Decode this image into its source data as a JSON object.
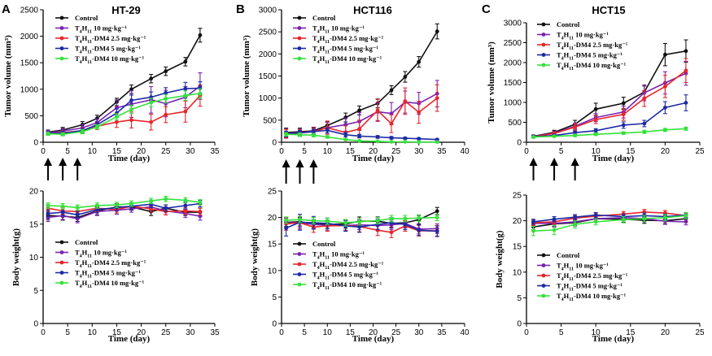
{
  "legend_labels": [
    "Control",
    "T4H11 10 mg·kg⁻¹",
    "T4H11-DM4 2.5 mg·kg⁻¹",
    "T4H11-DM4 5 mg·kg⁻¹",
    "T4H11-DM4 10 mg·kg⁻¹"
  ],
  "series_colors": [
    "#111111",
    "#7b22b4",
    "#e8262b",
    "#1c2aa6",
    "#34e23a"
  ],
  "chart_data": [
    {
      "type": "line",
      "panel": "A",
      "title": "HT-29",
      "xlabel": "Time (day)",
      "ylabel": "Tumor volume (mm³)",
      "xlim": [
        0,
        35
      ],
      "ylim": [
        0,
        2500
      ],
      "xticks": [
        0,
        5,
        10,
        15,
        20,
        25,
        30,
        35
      ],
      "yticks": [
        0,
        500,
        1000,
        1500,
        2000,
        2500
      ],
      "dosing_days": [
        1,
        4,
        7
      ],
      "legend": "top-left",
      "x": [
        1,
        4,
        8,
        11,
        15,
        18,
        22,
        25,
        29,
        32
      ],
      "series": [
        {
          "name": "Control",
          "values": [
            190,
            230,
            330,
            450,
            760,
            1000,
            1200,
            1340,
            1520,
            2020
          ],
          "err": [
            40,
            50,
            60,
            60,
            70,
            80,
            80,
            80,
            80,
            130
          ]
        },
        {
          "name": "T4H11 10 mg·kg⁻¹",
          "values": [
            180,
            210,
            270,
            370,
            650,
            720,
            800,
            730,
            850,
            1060
          ],
          "err": [
            40,
            50,
            60,
            70,
            150,
            250,
            250,
            250,
            200,
            250
          ]
        },
        {
          "name": "T4H11-DM4 2.5 mg·kg⁻¹",
          "values": [
            170,
            180,
            220,
            300,
            380,
            420,
            380,
            520,
            580,
            880
          ],
          "err": [
            30,
            40,
            50,
            60,
            100,
            150,
            150,
            150,
            200,
            200
          ]
        },
        {
          "name": "T4H11-DM4 5 mg·kg⁻¹",
          "values": [
            170,
            170,
            220,
            330,
            550,
            790,
            850,
            930,
            1010,
            1020
          ],
          "err": [
            30,
            40,
            40,
            50,
            80,
            100,
            100,
            100,
            120,
            120
          ]
        },
        {
          "name": "T4H11-DM4 10 mg·kg⁻¹",
          "values": [
            160,
            150,
            200,
            290,
            480,
            620,
            750,
            820,
            880,
            920
          ],
          "err": [
            30,
            30,
            40,
            40,
            60,
            80,
            80,
            80,
            90,
            90
          ]
        }
      ]
    },
    {
      "type": "line",
      "panel": "B",
      "title": "HCT116",
      "xlabel": "Time (day)",
      "ylabel": "Tumor volume (mm³)",
      "xlim": [
        0,
        40
      ],
      "ylim": [
        0,
        3000
      ],
      "xticks": [
        0,
        5,
        10,
        15,
        20,
        25,
        30,
        35,
        40
      ],
      "yticks": [
        0,
        500,
        1000,
        1500,
        2000,
        2500,
        3000
      ],
      "dosing_days": [
        1,
        4,
        7
      ],
      "legend": "top-left",
      "x": [
        1,
        4,
        7,
        10,
        14,
        17,
        21,
        24,
        27,
        30,
        34
      ],
      "series": [
        {
          "name": "Control",
          "values": [
            220,
            240,
            260,
            380,
            560,
            720,
            880,
            1180,
            1480,
            1820,
            2510
          ],
          "err": [
            100,
            80,
            80,
            80,
            100,
            100,
            100,
            100,
            120,
            120,
            170
          ]
        },
        {
          "name": "T4H11 10 mg·kg⁻¹",
          "values": [
            200,
            220,
            250,
            330,
            400,
            470,
            690,
            650,
            910,
            880,
            1100
          ],
          "err": [
            100,
            80,
            80,
            120,
            150,
            200,
            200,
            250,
            250,
            250,
            300
          ]
        },
        {
          "name": "T4H11-DM4 2.5 mg·kg⁻¹",
          "values": [
            190,
            210,
            240,
            330,
            220,
            300,
            720,
            420,
            930,
            680,
            1000
          ],
          "err": [
            100,
            80,
            80,
            150,
            150,
            200,
            250,
            200,
            300,
            250,
            300
          ]
        },
        {
          "name": "T4H11-DM4 5 mg·kg⁻¹",
          "values": [
            190,
            210,
            240,
            270,
            170,
            140,
            120,
            100,
            90,
            80,
            60
          ],
          "err": [
            60,
            60,
            60,
            60,
            50,
            40,
            30,
            30,
            20,
            20,
            20
          ]
        },
        {
          "name": "T4H11-DM4 10 mg·kg⁻¹",
          "values": [
            180,
            170,
            160,
            120,
            60,
            30,
            20,
            10,
            10,
            5,
            5
          ],
          "err": [
            40,
            40,
            40,
            30,
            20,
            10,
            5,
            5,
            5,
            5,
            5
          ]
        }
      ]
    },
    {
      "type": "line",
      "panel": "C",
      "title": "HCT15",
      "xlabel": "Time (day)",
      "ylabel": "Tumor volume (mm³)",
      "xlim": [
        0,
        25
      ],
      "ylim": [
        0,
        3000
      ],
      "xticks": [
        0,
        5,
        10,
        15,
        20,
        25
      ],
      "yticks": [
        0,
        500,
        1000,
        1500,
        2000,
        2500,
        3000
      ],
      "dosing_days": [
        1,
        4,
        7
      ],
      "legend": "top-left",
      "x": [
        1,
        4,
        7,
        10,
        14,
        17,
        20,
        23
      ],
      "series": [
        {
          "name": "Control",
          "values": [
            150,
            250,
            450,
            830,
            980,
            1260,
            2200,
            2290
          ],
          "err": [
            30,
            50,
            100,
            150,
            150,
            150,
            280,
            280
          ]
        },
        {
          "name": "T4H11 10 mg·kg⁻¹",
          "values": [
            140,
            230,
            400,
            620,
            760,
            1240,
            1490,
            1730
          ],
          "err": [
            30,
            40,
            80,
            100,
            150,
            200,
            280,
            300
          ]
        },
        {
          "name": "T4H11-DM4 2.5 mg·kg⁻¹",
          "values": [
            140,
            220,
            380,
            570,
            700,
            1100,
            1400,
            1800
          ],
          "err": [
            30,
            40,
            80,
            100,
            150,
            200,
            280,
            300
          ]
        },
        {
          "name": "T4H11-DM4 5 mg·kg⁻¹",
          "values": [
            140,
            170,
            240,
            290,
            430,
            470,
            870,
            990
          ],
          "err": [
            30,
            30,
            40,
            50,
            80,
            80,
            150,
            200
          ]
        },
        {
          "name": "T4H11-DM4 10 mg·kg⁻¹",
          "values": [
            130,
            150,
            170,
            200,
            230,
            260,
            310,
            340
          ],
          "err": [
            20,
            20,
            30,
            30,
            30,
            40,
            40,
            40
          ]
        }
      ]
    },
    {
      "type": "line",
      "panel": "A-weight",
      "xlabel": "Time (day)",
      "ylabel": "Body weight(g)",
      "xlim": [
        0,
        35
      ],
      "ylim": [
        0,
        20
      ],
      "xticks": [
        0,
        5,
        10,
        15,
        20,
        25,
        30,
        35
      ],
      "yticks": [
        0,
        5,
        10,
        15,
        20
      ],
      "legend": "bottom-left",
      "x": [
        1,
        4,
        7,
        11,
        15,
        18,
        22,
        25,
        29,
        32
      ],
      "series": [
        {
          "name": "Control",
          "values": [
            16.3,
            16.2,
            16.0,
            17.0,
            17.6,
            17.6,
            16.9,
            17.4,
            16.8,
            16.8
          ],
          "err": [
            0.6,
            0.6,
            0.6,
            0.6,
            0.5,
            0.5,
            0.6,
            0.5,
            0.5,
            0.6
          ]
        },
        {
          "name": "T4H11 10 mg·kg⁻¹",
          "values": [
            16.0,
            16.3,
            15.8,
            16.9,
            17.1,
            17.3,
            17.6,
            17.0,
            16.6,
            16.2
          ],
          "err": [
            0.6,
            0.6,
            0.6,
            0.6,
            0.6,
            0.5,
            0.5,
            0.6,
            0.6,
            0.6
          ]
        },
        {
          "name": "T4H11-DM4 2.5 mg·kg⁻¹",
          "values": [
            17.4,
            17.0,
            16.9,
            17.4,
            17.2,
            17.7,
            17.3,
            16.9,
            17.0,
            16.9
          ],
          "err": [
            0.5,
            0.5,
            0.5,
            0.5,
            0.5,
            0.5,
            0.5,
            0.5,
            0.5,
            0.5
          ]
        },
        {
          "name": "T4H11-DM4 5 mg·kg⁻¹",
          "values": [
            16.6,
            16.8,
            16.4,
            17.2,
            17.5,
            17.7,
            18.0,
            17.4,
            17.8,
            18.1
          ],
          "err": [
            0.5,
            0.5,
            0.5,
            0.5,
            0.5,
            0.5,
            0.5,
            0.5,
            0.5,
            0.5
          ]
        },
        {
          "name": "T4H11-DM4 10 mg·kg⁻¹",
          "values": [
            17.8,
            17.7,
            17.5,
            17.8,
            17.9,
            18.1,
            18.5,
            18.8,
            18.6,
            18.3
          ],
          "err": [
            0.4,
            0.4,
            0.4,
            0.4,
            0.4,
            0.4,
            0.4,
            0.4,
            0.4,
            0.4
          ]
        }
      ]
    },
    {
      "type": "line",
      "panel": "B-weight",
      "xlabel": "Time (day)",
      "ylabel": "Body weight(g)",
      "xlim": [
        0,
        40
      ],
      "ylim": [
        0,
        25
      ],
      "xticks": [
        0,
        5,
        10,
        15,
        20,
        25,
        30,
        35,
        40
      ],
      "yticks": [
        0,
        5,
        10,
        15,
        20,
        25
      ],
      "legend": "bottom-left",
      "x": [
        1,
        4,
        7,
        10,
        14,
        17,
        21,
        24,
        27,
        30,
        34
      ],
      "series": [
        {
          "name": "Control",
          "values": [
            19.1,
            19.2,
            18.8,
            18.7,
            18.8,
            19.3,
            19.3,
            18.9,
            19.0,
            19.6,
            21.2
          ],
          "err": [
            0.8,
            0.8,
            0.8,
            0.8,
            0.8,
            0.8,
            0.8,
            0.8,
            0.8,
            0.8,
            0.7
          ]
        },
        {
          "name": "T4H11 10 mg·kg⁻¹",
          "values": [
            19.0,
            19.0,
            18.7,
            18.5,
            18.5,
            18.6,
            18.5,
            18.6,
            18.9,
            17.8,
            17.9
          ],
          "err": [
            0.9,
            0.9,
            0.9,
            0.9,
            0.9,
            0.9,
            0.9,
            0.9,
            0.9,
            0.9,
            0.9
          ]
        },
        {
          "name": "T4H11-DM4 2.5 mg·kg⁻¹",
          "values": [
            18.8,
            19.0,
            18.2,
            18.4,
            18.5,
            18.3,
            17.6,
            17.2,
            18.4,
            17.5,
            17.5
          ],
          "err": [
            1.2,
            1.2,
            1.0,
            1.0,
            1.0,
            1.0,
            1.0,
            1.0,
            1.0,
            1.0,
            1.0
          ]
        },
        {
          "name": "T4H11-DM4 5 mg·kg⁻¹",
          "values": [
            18.0,
            19.1,
            19.0,
            18.9,
            18.4,
            18.2,
            18.7,
            19.0,
            18.7,
            17.6,
            17.4
          ],
          "err": [
            1.5,
            1.5,
            1.2,
            1.0,
            1.0,
            1.0,
            1.0,
            1.0,
            1.0,
            1.0,
            1.0
          ]
        },
        {
          "name": "T4H11-DM4 10 mg·kg⁻¹",
          "values": [
            19.5,
            19.6,
            19.4,
            19.3,
            19.0,
            19.2,
            19.4,
            19.8,
            19.8,
            19.9,
            20.0
          ],
          "err": [
            0.6,
            0.6,
            0.6,
            0.6,
            0.6,
            0.6,
            0.6,
            0.6,
            0.6,
            0.6,
            0.6
          ]
        }
      ]
    },
    {
      "type": "line",
      "panel": "C-weight",
      "xlabel": "Time (day)",
      "ylabel": "Body weight(g)",
      "xlim": [
        0,
        25
      ],
      "ylim": [
        0,
        25
      ],
      "xticks": [
        0,
        5,
        10,
        15,
        20,
        25
      ],
      "yticks": [
        0,
        5,
        10,
        15,
        20,
        25
      ],
      "legend": "bottom-left",
      "x": [
        1,
        4,
        7,
        10,
        14,
        17,
        20,
        23
      ],
      "series": [
        {
          "name": "Control",
          "values": [
            18.8,
            19.4,
            19.6,
            20.4,
            20.3,
            20.1,
            20.0,
            20.4
          ],
          "err": [
            0.6,
            0.6,
            0.6,
            0.6,
            0.6,
            0.6,
            0.6,
            0.6
          ]
        },
        {
          "name": "T4H11 10 mg·kg⁻¹",
          "values": [
            19.5,
            19.5,
            19.8,
            20.4,
            20.6,
            20.4,
            19.9,
            19.8
          ],
          "err": [
            0.6,
            0.6,
            0.6,
            0.6,
            0.6,
            0.6,
            0.6,
            0.6
          ]
        },
        {
          "name": "T4H11-DM4 2.5 mg·kg⁻¹",
          "values": [
            19.6,
            19.8,
            20.5,
            20.9,
            21.3,
            21.7,
            21.5,
            21.0
          ],
          "err": [
            0.5,
            0.5,
            0.5,
            0.5,
            0.5,
            0.5,
            0.5,
            0.5
          ]
        },
        {
          "name": "T4H11-DM4 5 mg·kg⁻¹",
          "values": [
            19.8,
            20.3,
            20.7,
            21.1,
            20.8,
            21.0,
            20.8,
            21.1
          ],
          "err": [
            0.5,
            0.5,
            0.5,
            0.5,
            0.5,
            0.5,
            0.5,
            0.5
          ]
        },
        {
          "name": "T4H11-DM4 10 mg·kg⁻¹",
          "values": [
            18.0,
            18.2,
            19.3,
            19.8,
            20.2,
            20.4,
            20.6,
            21.0
          ],
          "err": [
            0.9,
            0.9,
            0.7,
            0.6,
            0.6,
            0.6,
            0.6,
            0.6
          ]
        }
      ]
    }
  ]
}
